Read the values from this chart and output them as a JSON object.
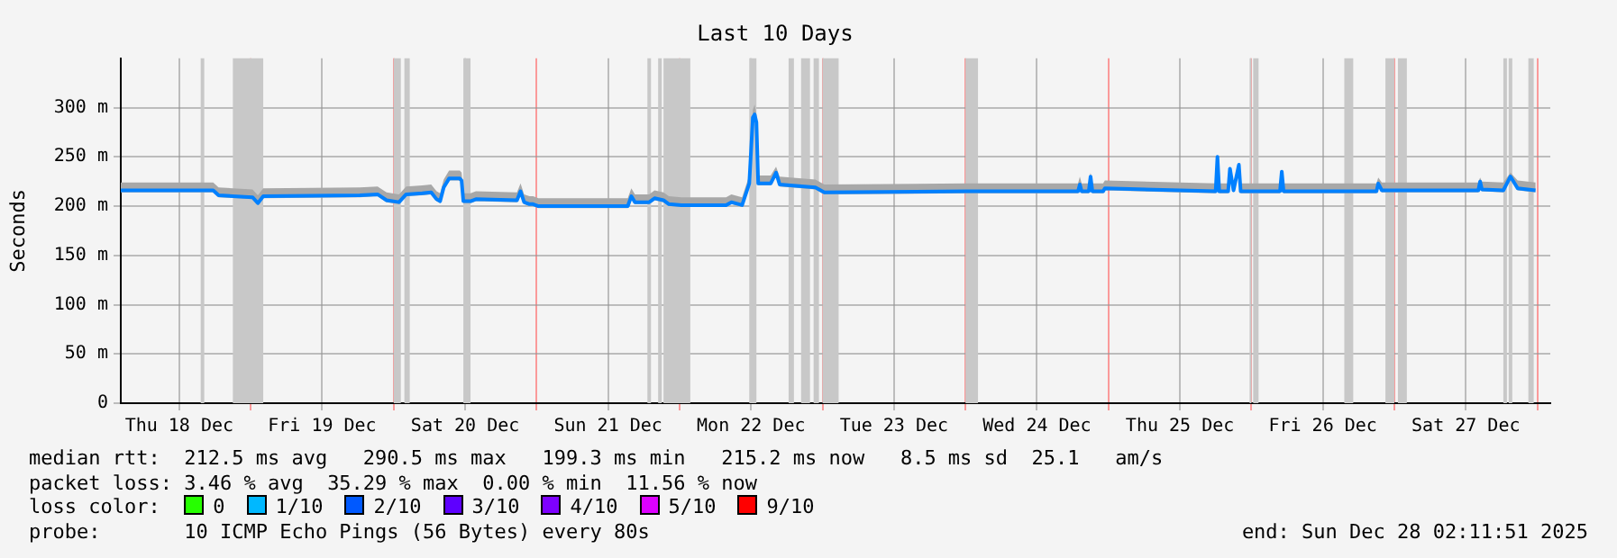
{
  "chart_data": {
    "type": "line",
    "title": "Last 10 Days",
    "ylabel": "Seconds",
    "xlim": [
      "2025-12-18T02:11",
      "2025-12-28T02:11"
    ],
    "xticks": [
      {
        "value": "2025-12-18T12:00",
        "label": "Thu 18 Dec"
      },
      {
        "value": "2025-12-19T00:00",
        "label": null
      },
      {
        "value": "2025-12-19T12:00",
        "label": "Fri 19 Dec"
      },
      {
        "value": "2025-12-20T00:00",
        "label": null
      },
      {
        "value": "2025-12-20T12:00",
        "label": "Sat 20 Dec"
      },
      {
        "value": "2025-12-21T00:00",
        "label": null
      },
      {
        "value": "2025-12-21T12:00",
        "label": "Sun 21 Dec"
      },
      {
        "value": "2025-12-22T00:00",
        "label": null
      },
      {
        "value": "2025-12-22T12:00",
        "label": "Mon 22 Dec"
      },
      {
        "value": "2025-12-23T00:00",
        "label": null
      },
      {
        "value": "2025-12-23T12:00",
        "label": "Tue 23 Dec"
      },
      {
        "value": "2025-12-24T00:00",
        "label": null
      },
      {
        "value": "2025-12-24T12:00",
        "label": "Wed 24 Dec"
      },
      {
        "value": "2025-12-25T00:00",
        "label": null
      },
      {
        "value": "2025-12-25T12:00",
        "label": "Thu 25 Dec"
      },
      {
        "value": "2025-12-26T00:00",
        "label": null
      },
      {
        "value": "2025-12-26T12:00",
        "label": "Fri 26 Dec"
      },
      {
        "value": "2025-12-27T00:00",
        "label": null
      },
      {
        "value": "2025-12-27T12:00",
        "label": "Sat 27 Dec"
      },
      {
        "value": "2025-12-28T00:00",
        "label": null
      }
    ],
    "ylim": [
      0,
      350
    ],
    "yticks": [
      0,
      {
        "value": 50,
        "label": "50 m"
      },
      {
        "value": 100,
        "label": "100 m"
      },
      {
        "value": 150,
        "label": "150 m"
      },
      {
        "value": 200,
        "label": "200 m"
      },
      {
        "value": 250,
        "label": "250 m"
      },
      {
        "value": 300,
        "label": "300 m"
      }
    ],
    "grid": true,
    "marker": "none",
    "legend": "bottom",
    "legend_title": "loss color:",
    "series": [
      {
        "color": "#0080ff",
        "x": [
          "2025-12-18T02:11",
          "2025-12-18T12:18",
          "2025-12-18T17:42",
          "2025-12-18T18:36",
          "2025-12-19T00:18",
          "2025-12-19T01:12",
          "2025-12-19T02:06",
          "2025-12-19T18:18",
          "2025-12-19T21:18",
          "2025-12-19T22:48",
          "2025-12-20T00:54",
          "2025-12-20T02:06",
          "2025-12-20T04:48",
          "2025-12-20T06:18",
          "2025-12-20T07:12",
          "2025-12-20T07:48",
          "2025-12-20T08:24",
          "2025-12-20T09:18",
          "2025-12-20T11:06",
          "2025-12-20T11:24",
          "2025-12-20T11:42",
          "2025-12-20T12:54",
          "2025-12-20T13:48",
          "2025-12-20T20:42",
          "2025-12-20T21:18",
          "2025-12-20T21:54",
          "2025-12-20T22:48",
          "2025-12-20T23:24",
          "2025-12-21T00:18",
          "2025-12-21T15:18",
          "2025-12-21T15:54",
          "2025-12-21T16:30",
          "2025-12-21T18:54",
          "2025-12-21T19:48",
          "2025-12-21T21:18",
          "2025-12-21T22:12",
          "2025-12-22T00:18",
          "2025-12-22T07:48",
          "2025-12-22T08:42",
          "2025-12-22T10:30",
          "2025-12-22T11:42",
          "2025-12-22T12:18",
          "2025-12-22T12:36",
          "2025-12-22T12:54",
          "2025-12-22T13:12",
          "2025-12-22T15:18",
          "2025-12-22T16:12",
          "2025-12-22T16:48",
          "2025-12-22T22:48",
          "2025-12-23T00:18",
          "2025-12-24T00:18",
          "2025-12-24T18:54",
          "2025-12-24T19:12",
          "2025-12-24T19:30",
          "2025-12-24T20:42",
          "2025-12-24T21:00",
          "2025-12-24T21:18",
          "2025-12-24T23:06",
          "2025-12-24T23:24",
          "2025-12-25T18:00",
          "2025-12-25T18:18",
          "2025-12-25T18:36",
          "2025-12-25T20:06",
          "2025-12-25T20:24",
          "2025-12-25T21:00",
          "2025-12-25T21:54",
          "2025-12-25T22:12",
          "2025-12-26T04:48",
          "2025-12-26T05:06",
          "2025-12-26T05:24",
          "2025-12-26T21:00",
          "2025-12-26T21:18",
          "2025-12-26T21:54",
          "2025-12-27T14:06",
          "2025-12-27T14:24",
          "2025-12-27T14:42",
          "2025-12-27T18:18",
          "2025-12-27T19:30",
          "2025-12-27T20:42",
          "2025-12-27T23:42"
        ],
        "values": [
          216,
          216,
          216,
          211,
          209,
          203,
          210,
          211,
          212,
          206,
          204,
          212,
          213,
          214,
          207,
          205,
          219,
          228,
          228,
          226,
          205,
          205,
          207,
          206,
          215,
          204,
          202,
          202,
          200,
          200,
          210,
          204,
          204,
          208,
          206,
          202,
          201,
          201,
          204,
          201,
          223,
          290,
          293,
          285,
          223,
          223,
          234,
          222,
          219,
          214,
          215,
          215,
          222,
          215,
          215,
          230,
          215,
          215,
          218,
          215,
          250,
          215,
          215,
          238,
          216,
          242,
          215,
          215,
          235,
          215,
          215,
          223,
          216,
          216,
          225,
          217,
          216,
          230,
          218,
          216
        ],
        "upper": [
          224,
          224,
          224,
          219,
          217,
          211,
          218,
          219,
          220,
          214,
          212,
          220,
          221,
          222,
          215,
          213,
          227,
          236,
          236,
          234,
          213,
          213,
          215,
          214,
          223,
          212,
          210,
          210,
          208,
          208,
          218,
          212,
          212,
          216,
          214,
          210,
          209,
          209,
          212,
          209,
          231,
          298,
          303,
          293,
          231,
          231,
          240,
          230,
          227,
          222,
          223,
          223,
          230,
          223,
          223,
          234,
          223,
          223,
          226,
          223,
          252,
          223,
          223,
          240,
          224,
          244,
          223,
          223,
          237,
          223,
          223,
          229,
          224,
          224,
          229,
          225,
          224,
          234,
          226,
          224
        ],
        "lower": [
          214,
          214,
          214,
          209,
          207,
          201,
          208,
          209,
          210,
          204,
          202,
          210,
          211,
          212,
          205,
          203,
          217,
          226,
          226,
          224,
          203,
          203,
          205,
          204,
          213,
          202,
          200,
          200,
          198,
          198,
          208,
          202,
          202,
          206,
          204,
          200,
          199,
          199,
          202,
          199,
          221,
          288,
          291,
          283,
          221,
          221,
          232,
          220,
          217,
          212,
          213,
          213,
          220,
          213,
          213,
          228,
          213,
          213,
          216,
          213,
          248,
          213,
          213,
          236,
          214,
          240,
          213,
          213,
          233,
          213,
          213,
          221,
          214,
          214,
          223,
          215,
          214,
          228,
          216,
          214
        ]
      },
      {
        "name": "0",
        "color": "#26ff00"
      },
      {
        "name": "1/10",
        "color": "#00b8ff"
      },
      {
        "name": "2/10",
        "color": "#0059ff"
      },
      {
        "name": "3/10",
        "color": "#5e00ff"
      },
      {
        "name": "4/10",
        "color": "#7e00ff"
      },
      {
        "name": "5/10",
        "color": "#dd00ff"
      },
      {
        "name": "9/10",
        "color": "#ff0000"
      }
    ],
    "bands": [
      {
        "axis": "x",
        "from": "2025-12-18T15:36",
        "to": "2025-12-18T16:12",
        "color": "#c8c8c8"
      },
      {
        "axis": "x",
        "from": "2025-12-18T21:00",
        "to": "2025-12-19T02:06",
        "color": "#c8c8c8"
      },
      {
        "axis": "x",
        "from": "2025-12-20T00:00",
        "to": "2025-12-20T01:12",
        "color": "#c8c8c8"
      },
      {
        "axis": "x",
        "from": "2025-12-20T01:48",
        "to": "2025-12-20T02:42",
        "color": "#c8c8c8"
      },
      {
        "axis": "x",
        "from": "2025-12-20T11:42",
        "to": "2025-12-20T12:54",
        "color": "#c8c8c8"
      },
      {
        "axis": "x",
        "from": "2025-12-21T18:36",
        "to": "2025-12-21T19:12",
        "color": "#c8c8c8"
      },
      {
        "axis": "x",
        "from": "2025-12-21T20:24",
        "to": "2025-12-21T21:00",
        "color": "#c8c8c8"
      },
      {
        "axis": "x",
        "from": "2025-12-21T21:18",
        "to": "2025-12-22T01:48",
        "color": "#c8c8c8"
      },
      {
        "axis": "x",
        "from": "2025-12-22T11:42",
        "to": "2025-12-22T12:54",
        "color": "#c8c8c8"
      },
      {
        "axis": "x",
        "from": "2025-12-22T18:18",
        "to": "2025-12-22T19:12",
        "color": "#c8c8c8"
      },
      {
        "axis": "x",
        "from": "2025-12-22T20:24",
        "to": "2025-12-22T21:54",
        "color": "#c8c8c8"
      },
      {
        "axis": "x",
        "from": "2025-12-22T22:30",
        "to": "2025-12-22T23:24",
        "color": "#c8c8c8"
      },
      {
        "axis": "x",
        "from": "2025-12-23T00:00",
        "to": "2025-12-23T02:42",
        "color": "#c8c8c8"
      },
      {
        "axis": "x",
        "from": "2025-12-24T00:00",
        "to": "2025-12-24T02:06",
        "color": "#c8c8c8"
      },
      {
        "axis": "x",
        "from": "2025-12-25T23:42",
        "to": "2025-12-26T00:00",
        "color": "#c8c8c8"
      },
      {
        "axis": "x",
        "from": "2025-12-26T00:18",
        "to": "2025-12-26T01:12",
        "color": "#c8c8c8"
      },
      {
        "axis": "x",
        "from": "2025-12-26T15:36",
        "to": "2025-12-26T17:06",
        "color": "#c8c8c8"
      },
      {
        "axis": "x",
        "from": "2025-12-26T22:30",
        "to": "2025-12-27T00:00",
        "color": "#c8c8c8"
      },
      {
        "axis": "x",
        "from": "2025-12-27T00:36",
        "to": "2025-12-27T02:06",
        "color": "#c8c8c8"
      },
      {
        "axis": "x",
        "from": "2025-12-27T18:18",
        "to": "2025-12-27T18:54",
        "color": "#c8c8c8"
      },
      {
        "axis": "x",
        "from": "2025-12-27T19:12",
        "to": "2025-12-27T19:48",
        "color": "#c8c8c8"
      },
      {
        "axis": "x",
        "from": "2025-12-27T22:30",
        "to": "2025-12-27T23:24",
        "color": "#c8c8c8"
      }
    ],
    "annotations": [
      "median rtt:  212.5 ms avg   290.5 ms max   199.3 ms min   215.2 ms now   8.5 ms sd  25.1   am/s",
      "packet loss: 3.46 % avg  35.29 % max  0.00 % min  11.56 % now",
      "probe:       10 ICMP Echo Pings (56 Bytes) every 80s",
      "end: Sun Dec 28 02:11:51 2025"
    ]
  }
}
